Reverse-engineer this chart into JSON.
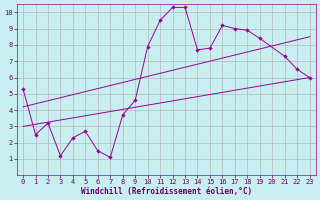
{
  "xlabel": "Windchill (Refroidissement éolien,°C)",
  "bg_color": "#c8eef0",
  "line_color": "#990099",
  "grid_color": "#aaaaaa",
  "xlim": [
    -0.5,
    23.5
  ],
  "ylim": [
    0,
    10.5
  ],
  "xticks": [
    0,
    1,
    2,
    3,
    4,
    5,
    6,
    7,
    8,
    9,
    10,
    11,
    12,
    13,
    14,
    15,
    16,
    17,
    18,
    19,
    20,
    21,
    22,
    23
  ],
  "yticks": [
    1,
    2,
    3,
    4,
    5,
    6,
    7,
    8,
    9,
    10
  ],
  "main_x": [
    0,
    1,
    2,
    3,
    4,
    5,
    6,
    7,
    8,
    9,
    10,
    11,
    12,
    13,
    14,
    15,
    16,
    17,
    18,
    19,
    21,
    22,
    23
  ],
  "main_y": [
    5.3,
    2.5,
    3.2,
    1.2,
    2.3,
    2.7,
    1.5,
    1.1,
    3.7,
    4.6,
    7.9,
    9.5,
    10.3,
    10.3,
    7.7,
    7.8,
    9.2,
    9.0,
    8.9,
    8.4,
    7.3,
    6.5,
    6.0
  ],
  "lower_line_x": [
    0,
    23
  ],
  "lower_line_y": [
    3.0,
    6.0
  ],
  "upper_line_x": [
    0,
    23
  ],
  "upper_line_y": [
    4.2,
    8.5
  ],
  "font_color": "#660066",
  "font_size_tick": 5,
  "font_size_xlabel": 5.5
}
